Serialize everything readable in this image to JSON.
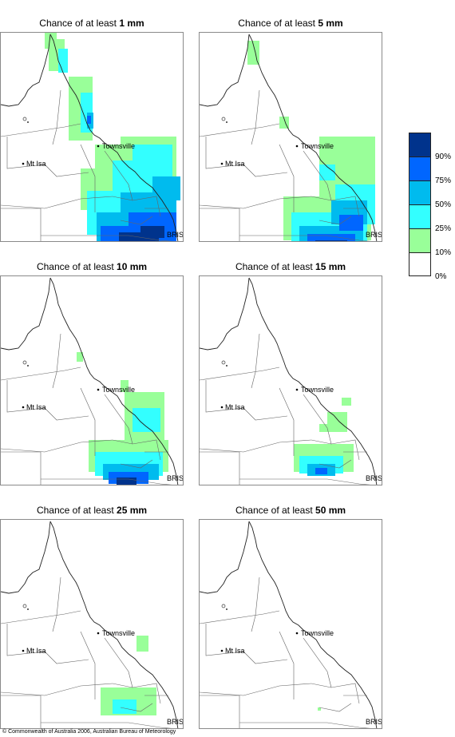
{
  "panels": [
    {
      "title_prefix": "Chance of at least ",
      "title_value": "1 mm",
      "zones": [
        {
          "level": 10,
          "cells": [
            [
              118,
              160,
              58,
              60
            ],
            [
              100,
              190,
              95,
              52
            ],
            [
              150,
              150,
              70,
              80
            ],
            [
              60,
              28,
              20,
              40
            ],
            [
              85,
              75,
              30,
              80
            ],
            [
              55,
              20,
              15,
              20
            ]
          ]
        },
        {
          "level": 25,
          "cells": [
            [
              108,
              218,
              110,
              55
            ],
            [
              140,
              180,
              75,
              60
            ],
            [
              165,
              160,
              50,
              45
            ],
            [
              72,
              40,
              12,
              30
            ],
            [
              100,
              95,
              15,
              50
            ]
          ]
        },
        {
          "level": 50,
          "cells": [
            [
              120,
              245,
              100,
              40
            ],
            [
              150,
              220,
              70,
              40
            ],
            [
              190,
              200,
              35,
              30
            ],
            [
              108,
              120,
              8,
              20
            ]
          ]
        },
        {
          "level": 75,
          "cells": [
            [
              125,
              262,
              95,
              30
            ],
            [
              160,
              245,
              60,
              25
            ],
            [
              108,
              124,
              5,
              10
            ]
          ]
        },
        {
          "level": 90,
          "cells": [
            [
              148,
              270,
              50,
              20
            ],
            [
              175,
              262,
              30,
              15
            ]
          ]
        }
      ]
    },
    {
      "title_prefix": "Chance of at least ",
      "title_value": "5 mm",
      "zones": [
        {
          "level": 10,
          "cells": [
            [
              150,
              150,
              70,
              90
            ],
            [
              105,
              225,
              110,
              55
            ],
            [
              60,
              30,
              15,
              30
            ],
            [
              100,
              125,
              12,
              15
            ],
            [
              165,
              180,
              40,
              30
            ]
          ]
        },
        {
          "level": 25,
          "cells": [
            [
              115,
              245,
              95,
              40
            ],
            [
              170,
              210,
              50,
              50
            ],
            [
              150,
              185,
              20,
              20
            ]
          ]
        },
        {
          "level": 50,
          "cells": [
            [
              125,
              262,
              80,
              30
            ],
            [
              165,
              230,
              45,
              30
            ]
          ]
        },
        {
          "level": 75,
          "cells": [
            [
              135,
              272,
              60,
              20
            ],
            [
              175,
              248,
              30,
              20
            ]
          ]
        },
        {
          "level": 90,
          "cells": [
            [
              145,
              280,
              40,
              12
            ]
          ]
        }
      ]
    },
    {
      "title_prefix": "Chance of at least ",
      "title_value": "10 mm",
      "zones": [
        {
          "level": 10,
          "cells": [
            [
              155,
              165,
              50,
              60
            ],
            [
              110,
              225,
              100,
              40
            ],
            [
              95,
              115,
              8,
              12
            ],
            [
              150,
              150,
              10,
              15
            ],
            [
              60,
              10,
              6,
              6
            ]
          ]
        },
        {
          "level": 25,
          "cells": [
            [
              118,
              240,
              85,
              30
            ],
            [
              165,
              185,
              35,
              30
            ]
          ]
        },
        {
          "level": 50,
          "cells": [
            [
              128,
              255,
              70,
              20
            ]
          ]
        },
        {
          "level": 75,
          "cells": [
            [
              135,
              265,
              50,
              15
            ]
          ]
        },
        {
          "level": 90,
          "cells": [
            [
              145,
              272,
              25,
              10
            ]
          ]
        }
      ]
    },
    {
      "title_prefix": "Chance of at least ",
      "title_value": "15 mm",
      "zones": [
        {
          "level": 10,
          "cells": [
            [
              118,
              230,
              75,
              35
            ],
            [
              160,
              190,
              25,
              25
            ],
            [
              178,
              172,
              12,
              10
            ],
            [
              150,
              205,
              10,
              10
            ]
          ]
        },
        {
          "level": 25,
          "cells": [
            [
              125,
              245,
              55,
              22
            ]
          ]
        },
        {
          "level": 50,
          "cells": [
            [
              135,
              255,
              35,
              15
            ]
          ]
        },
        {
          "level": 75,
          "cells": [
            [
              145,
              260,
              15,
              8
            ]
          ]
        }
      ]
    },
    {
      "title_prefix": "Chance of at least ",
      "title_value": "25 mm",
      "zones": [
        {
          "level": 10,
          "cells": [
            [
              125,
              230,
              70,
              35
            ],
            [
              170,
              165,
              15,
              20
            ]
          ]
        },
        {
          "level": 25,
          "cells": [
            [
              140,
              245,
              30,
              18
            ]
          ]
        }
      ]
    },
    {
      "title_prefix": "Chance of at least ",
      "title_value": "50 mm",
      "zones": [
        {
          "level": 10,
          "cells": [
            [
              148,
              255,
              4,
              4
            ]
          ]
        }
      ]
    }
  ],
  "map_labels": {
    "townsville": "Townsville",
    "mt_isa": "Mt Isa",
    "brisbane": "BRIS"
  },
  "legend": {
    "colors": [
      "#00338c",
      "#0066ff",
      "#00bbee",
      "#33ffff",
      "#99ff99",
      "#ffffff"
    ],
    "levels": [
      90,
      75,
      50,
      25,
      10,
      0
    ],
    "labels": [
      "90%",
      "75%",
      "50%",
      "25%",
      "10%",
      "0%"
    ]
  },
  "level_colors": {
    "10": "#99ff99",
    "25": "#33ffff",
    "50": "#00bbee",
    "75": "#0066ff",
    "90": "#00338c"
  },
  "copyright": "© Commonwealth of Australia 2006, Australian Bureau of Meteorology"
}
